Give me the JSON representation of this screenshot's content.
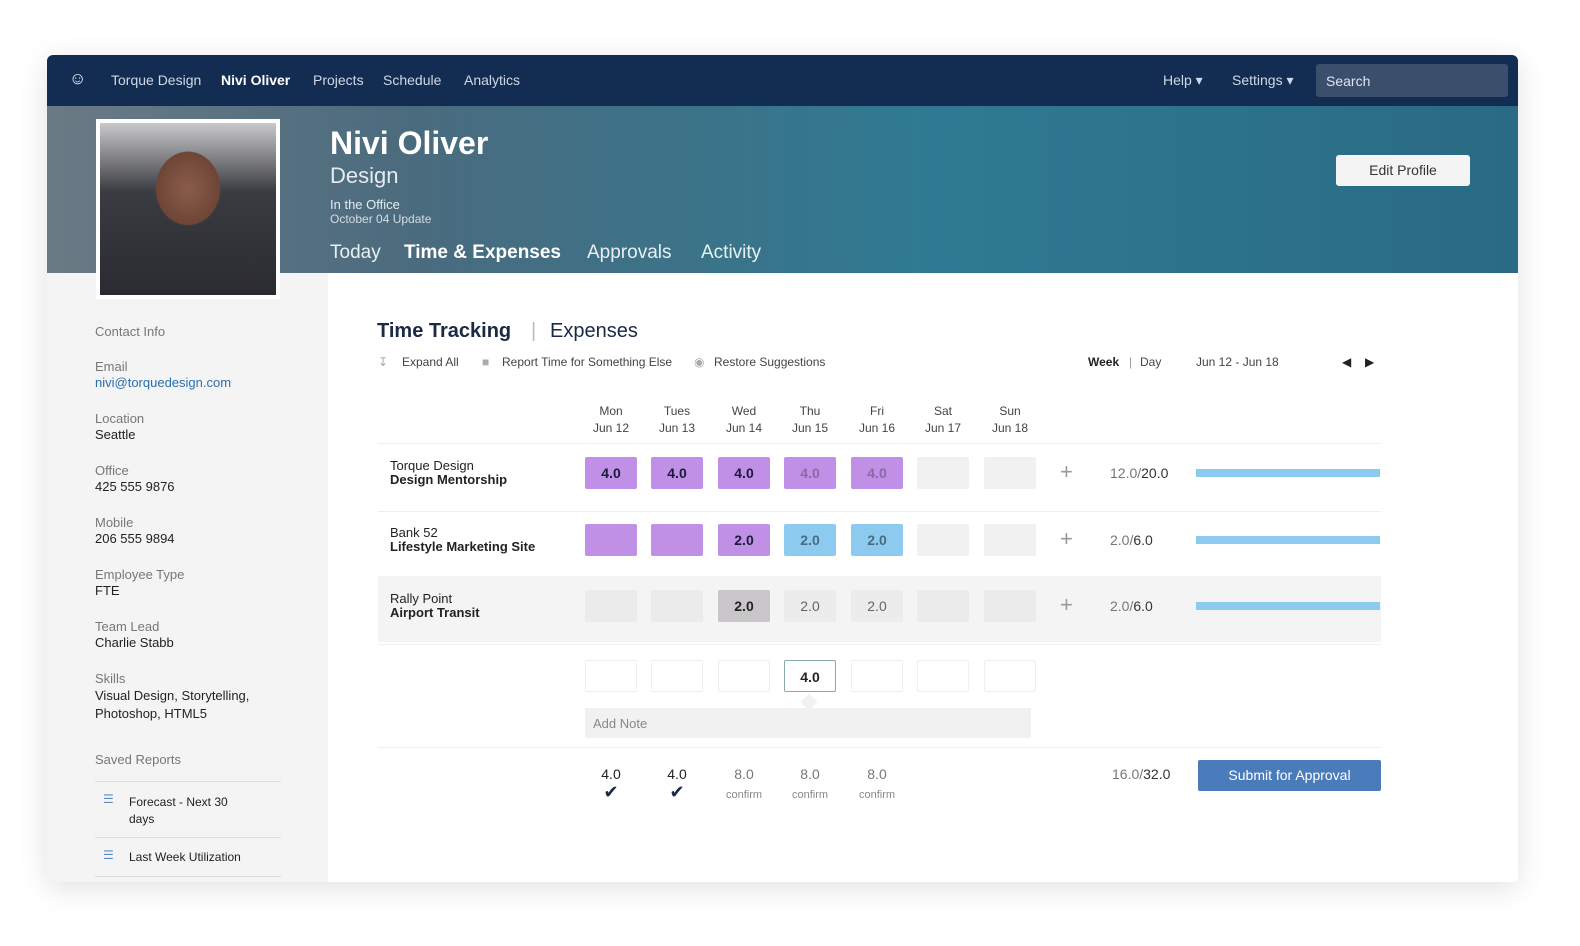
{
  "nav": {
    "items": [
      "Torque Design",
      "Nivi Oliver",
      "Projects",
      "Schedule",
      "Analytics"
    ],
    "active": "Nivi Oliver",
    "help": "Help",
    "settings": "Settings",
    "search_placeholder": "Search"
  },
  "profile": {
    "name": "Nivi Oliver",
    "department": "Design",
    "status": "In the Office",
    "update": "October 04 Update",
    "edit_label": "Edit Profile",
    "tabs": [
      "Today",
      "Time & Expenses",
      "Approvals",
      "Activity"
    ],
    "active_tab": "Time & Expenses"
  },
  "sidebar": {
    "contact_heading": "Contact Info",
    "fields": [
      {
        "label": "Email",
        "value": "nivi@torquedesign.com"
      },
      {
        "label": "Location",
        "value": "Seattle"
      },
      {
        "label": "Office",
        "value": "425 555 9876"
      },
      {
        "label": "Mobile",
        "value": "206 555 9894"
      },
      {
        "label": "Employee Type",
        "value": "FTE"
      },
      {
        "label": "Team Lead",
        "value": "Charlie Stabb"
      },
      {
        "label": "Skills",
        "value": "Visual Design, Storytelling, Photoshop, HTML5"
      }
    ],
    "saved_heading": "Saved Reports",
    "reports": [
      "Forecast - Next 30 days",
      "Last Week Utilization"
    ]
  },
  "main": {
    "title": "Time Tracking",
    "tab2": "Expenses",
    "tools": [
      "Expand All",
      "Report Time for Something Else",
      "Restore Suggestions"
    ],
    "view_week": "Week",
    "view_day": "Day",
    "range": "Jun 12 - Jun 18",
    "days": [
      {
        "d": "Mon",
        "date": "Jun 12"
      },
      {
        "d": "Tues",
        "date": "Jun 13"
      },
      {
        "d": "Wed",
        "date": "Jun 14"
      },
      {
        "d": "Thu",
        "date": "Jun 15"
      },
      {
        "d": "Fri",
        "date": "Jun 16"
      },
      {
        "d": "Sat",
        "date": "Jun 17"
      },
      {
        "d": "Sun",
        "date": "Jun 18"
      }
    ],
    "rows": [
      {
        "client": "Torque Design",
        "project": "Design Mentorship",
        "cells": [
          "4.0",
          "4.0",
          "4.0",
          "4.0",
          "4.0",
          "",
          ""
        ],
        "styles": [
          "p",
          "p",
          "p",
          "pl",
          "pl",
          "e",
          "e"
        ],
        "logged": "12.0",
        "total": "20.0",
        "progress": 1.0
      },
      {
        "client": "Bank 52",
        "project": "Lifestyle Marketing Site",
        "cells": [
          "",
          "",
          "2.0",
          "2.0",
          "2.0",
          "",
          ""
        ],
        "styles": [
          "p",
          "p",
          "p",
          "b",
          "b",
          "e",
          "e"
        ],
        "logged": "2.0",
        "total": "6.0",
        "progress": 1.0
      },
      {
        "client": "Rally Point",
        "project": "Airport Transit",
        "cells": [
          "",
          "",
          "2.0",
          "2.0",
          "2.0",
          "",
          ""
        ],
        "styles": [
          "e",
          "e",
          "g",
          "e",
          "e",
          "e",
          "e"
        ],
        "logged": "2.0",
        "total": "6.0",
        "progress": 1.0
      }
    ],
    "input_cells": [
      "",
      "",
      "",
      "4.0",
      "",
      "",
      ""
    ],
    "note_placeholder": "Add Note",
    "daily_totals": [
      {
        "v": "4.0",
        "s": "check"
      },
      {
        "v": "4.0",
        "s": "check"
      },
      {
        "v": "8.0",
        "s": "confirm"
      },
      {
        "v": "8.0",
        "s": "confirm"
      },
      {
        "v": "8.0",
        "s": "confirm"
      }
    ],
    "week_logged": "16.0",
    "week_total": "32.0",
    "submit_label": "Submit for Approval",
    "colors": {
      "purple": "#c08fe6",
      "blue": "#8ccbef",
      "gray": "#c8c6c8",
      "nav": "#132d52",
      "submit": "#4a7bbb"
    }
  }
}
